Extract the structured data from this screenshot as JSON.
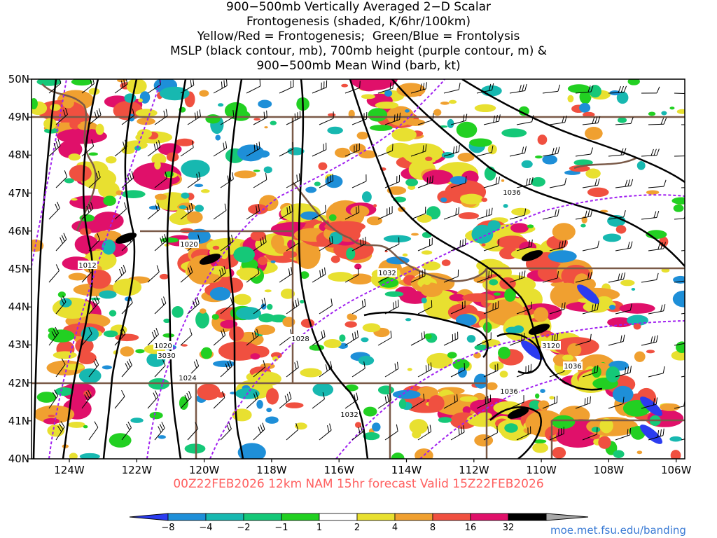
{
  "title": {
    "lines": [
      "900−500mb Vertically Averaged 2−D Scalar",
      "Frontogenesis (shaded, K/6hr/100km)",
      "Yellow/Red = Frontogenesis;  Green/Blue = Frontolysis",
      "MSLP (black contour, mb), 700mb height (purple contour, m) &",
      "900−500mb Mean Wind (barb, kt)"
    ]
  },
  "map": {
    "lat_labels": [
      "50N",
      "49N",
      "48N",
      "47N",
      "46N",
      "45N",
      "44N",
      "43N",
      "42N",
      "41N",
      "40N"
    ],
    "lon_labels": [
      "124W",
      "122W",
      "120W",
      "118W",
      "116W",
      "114W",
      "112W",
      "110W",
      "108W",
      "106W"
    ],
    "contour_labels": [
      {
        "text": "1036",
        "color": "#000000"
      },
      {
        "text": "1020",
        "color": "#000000"
      },
      {
        "text": "1012",
        "color": "#000000"
      },
      {
        "text": "1032",
        "color": "#000000"
      },
      {
        "text": "1020",
        "color": "#000000"
      },
      {
        "text": "3030",
        "color": "#000000"
      },
      {
        "text": "1028",
        "color": "#000000"
      },
      {
        "text": "3120",
        "color": "#000000"
      },
      {
        "text": "1036",
        "color": "#000000"
      },
      {
        "text": "1024",
        "color": "#000000"
      },
      {
        "text": "1036",
        "color": "#000000"
      },
      {
        "text": "1032",
        "color": "#000000"
      }
    ]
  },
  "valid_line": "00Z22FEB2026 12km NAM 15hr forecast Valid 15Z22FEB2026",
  "colorbar": {
    "labels": [
      "−8",
      "−4",
      "−2",
      "−1",
      "1",
      "2",
      "4",
      "8",
      "16",
      "32"
    ],
    "colors": [
      "#2b3cf0",
      "#1e8fd8",
      "#17b8b0",
      "#15c878",
      "#22d022",
      "#ffffff",
      "#e8e030",
      "#f0a030",
      "#f05040",
      "#e0106a",
      "#000000",
      "#a8a8a8"
    ]
  },
  "url": "moe.met.fsu.edu/banding"
}
